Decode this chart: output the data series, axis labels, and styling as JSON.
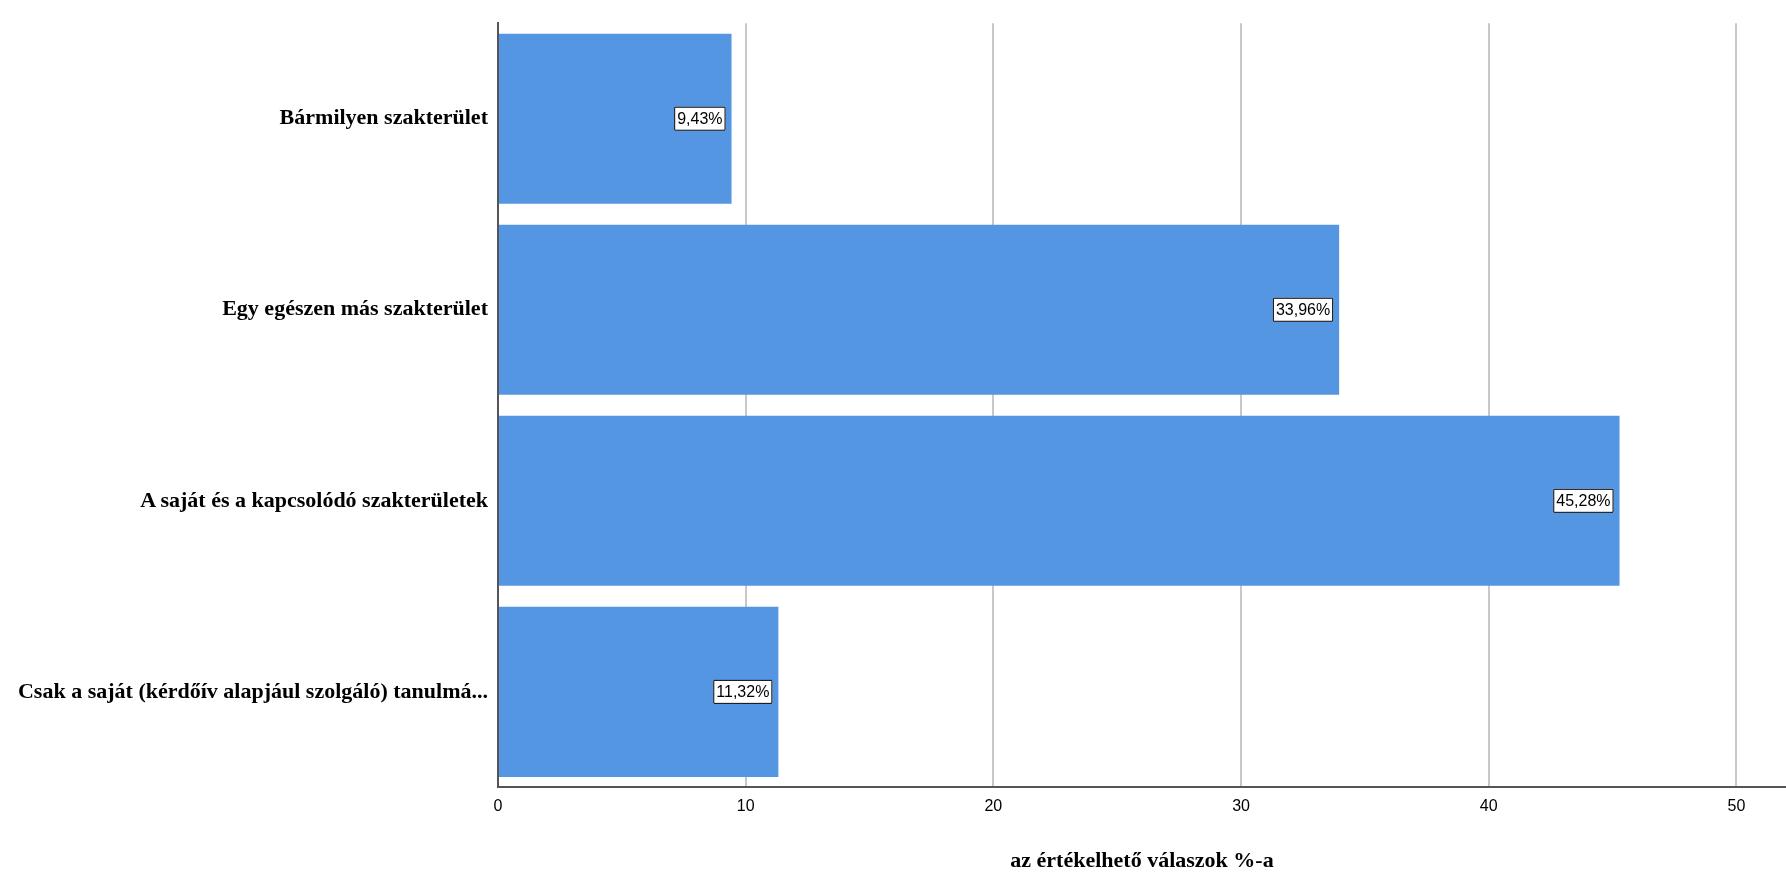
{
  "chart_data": {
    "type": "bar",
    "orientation": "horizontal",
    "xlabel": "az értékelhető válaszok %-a",
    "categories": [
      "Bármilyen szakterület",
      "Egy egészen más szakterület",
      "A saját és a kapcsolódó szakterületek",
      "Csak a saját (kérdőív alapjául szolgáló) tanulmá..."
    ],
    "values": [
      9.43,
      33.96,
      45.28,
      11.32
    ],
    "value_labels": [
      "9,43%",
      "33,96%",
      "45,28%",
      "11,32%"
    ],
    "color": "#5596e3",
    "xlim": [
      0,
      52
    ],
    "xticks": [
      0,
      10,
      20,
      30,
      40,
      50
    ],
    "grid": "x",
    "legend": false
  }
}
